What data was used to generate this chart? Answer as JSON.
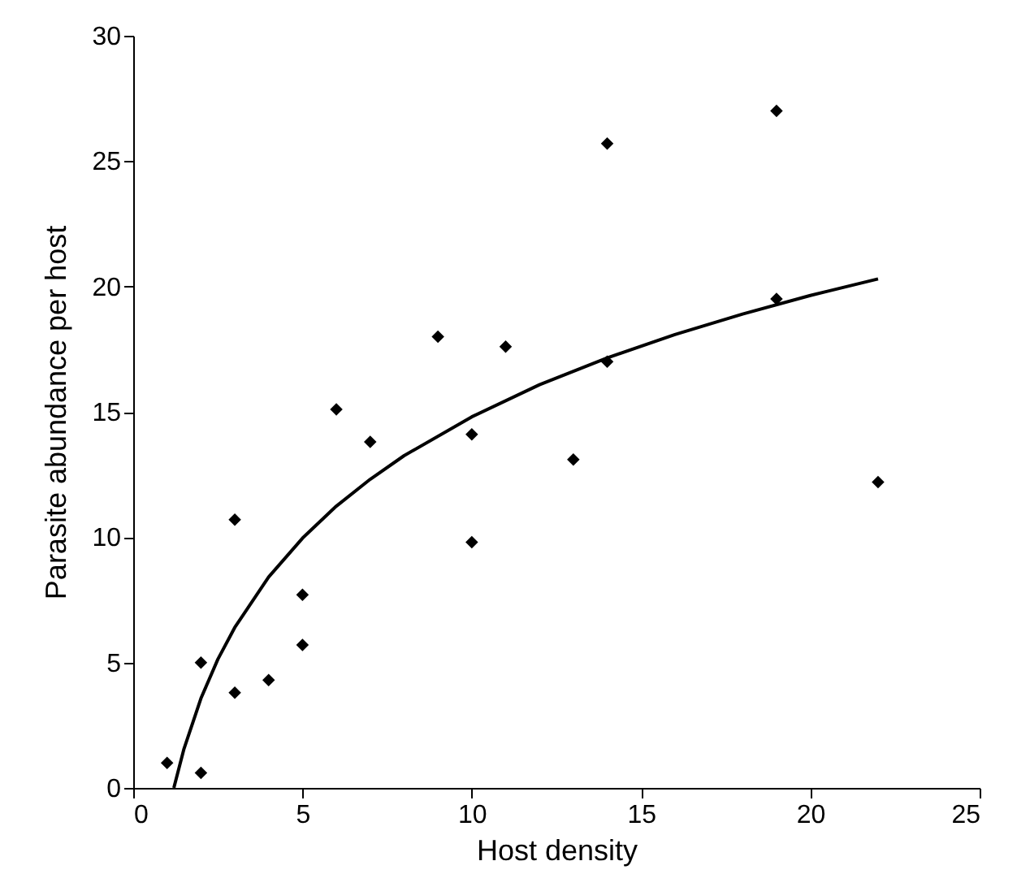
{
  "chart_data": {
    "type": "scatter",
    "xlabel": "Host density",
    "ylabel": "Parasite abundance per host",
    "xlim": [
      0,
      25
    ],
    "xticks": [
      0,
      5,
      10,
      15,
      20,
      25
    ],
    "ylim": [
      0,
      30
    ],
    "yticks": [
      0,
      5,
      10,
      15,
      20,
      25,
      30
    ],
    "grid": false,
    "series": [
      {
        "color": "#000000",
        "marker": "diamond",
        "x": [
          1,
          2,
          2,
          3,
          3,
          4,
          5,
          5,
          6,
          7,
          9,
          10,
          10,
          11,
          13,
          14,
          14,
          19,
          19,
          22
        ],
        "values": [
          1.0,
          0.6,
          5.0,
          3.8,
          10.7,
          4.3,
          5.7,
          7.7,
          15.1,
          13.8,
          18.0,
          14.1,
          9.8,
          17.6,
          13.1,
          25.7,
          17.0,
          27.0,
          19.5,
          12.2
        ]
      },
      {
        "type": "line",
        "color": "#000000",
        "marker": "none",
        "line_style": "solid",
        "x": [
          1.2,
          1.5,
          2,
          2.5,
          3,
          4,
          5,
          6,
          7,
          8,
          10,
          12,
          14,
          16,
          18,
          20,
          22
        ],
        "values": [
          0,
          1.56,
          3.57,
          5.13,
          6.4,
          8.41,
          9.96,
          11.24,
          12.31,
          13.25,
          14.8,
          16.08,
          17.15,
          18.08,
          18.9,
          19.64,
          20.3
        ]
      }
    ]
  }
}
